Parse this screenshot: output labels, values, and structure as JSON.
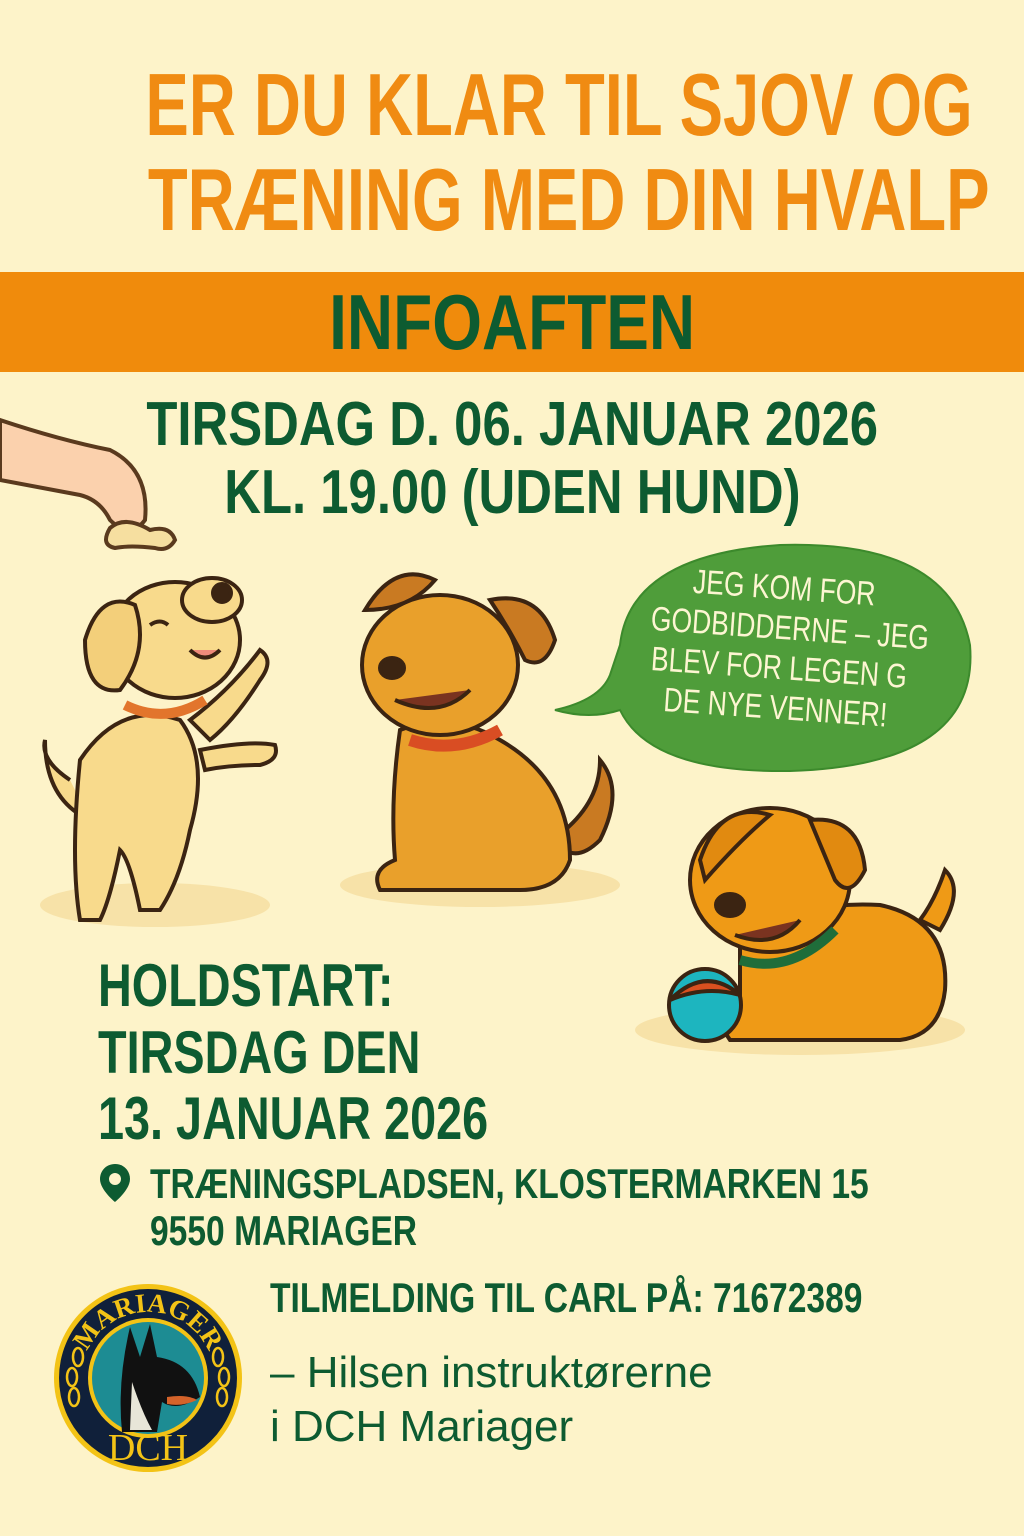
{
  "headline": {
    "line1": "ER DU KLAR TIL SJOV OG",
    "line2": "TRÆNING MED DIN HVALP"
  },
  "banner": {
    "label": "INFOAFTEN"
  },
  "info_meeting": {
    "date": "TIRSDAG D. 06. JANUAR 2026",
    "time": "KL. 19.00 (UDEN HUND)"
  },
  "speech_bubble": {
    "lines": [
      "JEG KOM FOR",
      "GODBIDDERNE – JEG",
      "BLEV FOR LEGEN G",
      "DE NYE VENNER!"
    ]
  },
  "course_start": {
    "line1": "HOLDSTART:",
    "line2": "TIRSDAG DEN",
    "line3": "13. JANUAR 2026"
  },
  "location": {
    "icon": "map-pin-icon",
    "line1": "TRÆNINGSPLADSEN,  KLOSTERMARKEN 15",
    "line2": "9550 MARIAGER"
  },
  "signup": {
    "text": "TILMELDING TIL CARL PÅ: 71672389"
  },
  "greeting": {
    "line1": "– Hilsen instruktørerne",
    "line2": "i DCH Mariager"
  },
  "logo": {
    "top_text": "MARIAGER",
    "bottom_text": "DCH"
  },
  "colors": {
    "background": "#fdf3c9",
    "orange": "#f08b0c",
    "dark_green": "#0d5b31",
    "bubble_green": "#4f9d3a"
  }
}
